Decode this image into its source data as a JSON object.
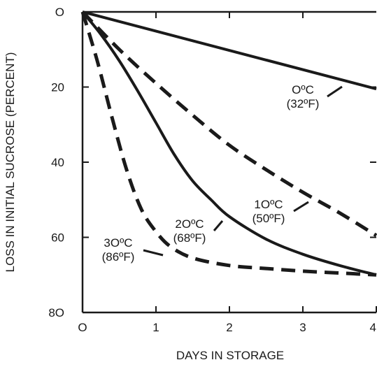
{
  "chart_data": {
    "type": "line",
    "title": "",
    "xlabel": "DAYS IN STORAGE",
    "ylabel": "LOSS IN INITIAL SUCROSE (PERCENT)",
    "xlim": [
      0,
      4
    ],
    "ylim": [
      0,
      80
    ],
    "y_inverted": true,
    "grid": false,
    "x_ticks": [
      {
        "value": 0,
        "label": "O"
      },
      {
        "value": 1,
        "label": "1"
      },
      {
        "value": 2,
        "label": "2"
      },
      {
        "value": 3,
        "label": "3"
      },
      {
        "value": 4,
        "label": "4"
      }
    ],
    "y_ticks": [
      {
        "value": 0,
        "label": "O"
      },
      {
        "value": 20,
        "label": "20"
      },
      {
        "value": 40,
        "label": "40"
      },
      {
        "value": 60,
        "label": "60"
      },
      {
        "value": 80,
        "label": "8O"
      }
    ],
    "series": [
      {
        "name": "0°C (32°F)",
        "label_lines": [
          "OºC",
          "(32ºF)"
        ],
        "style": "solid",
        "points": [
          [
            0,
            0
          ],
          [
            4,
            20.5
          ]
        ]
      },
      {
        "name": "10°C (50°F)",
        "label_lines": [
          "1OºC",
          "(50ºF)"
        ],
        "style": "dashed",
        "points": [
          [
            0,
            0
          ],
          [
            0.5,
            10
          ],
          [
            1,
            19
          ],
          [
            1.5,
            27.5
          ],
          [
            2,
            35.5
          ],
          [
            2.5,
            42
          ],
          [
            3,
            48
          ],
          [
            3.5,
            53.5
          ],
          [
            4,
            59.5
          ]
        ]
      },
      {
        "name": "20°C (68°F)",
        "label_lines": [
          "2OºC",
          "(68ºF)"
        ],
        "style": "solid",
        "points": [
          [
            0,
            0
          ],
          [
            0.25,
            6
          ],
          [
            0.5,
            13
          ],
          [
            0.75,
            21
          ],
          [
            1,
            29.5
          ],
          [
            1.25,
            38
          ],
          [
            1.5,
            45
          ],
          [
            1.75,
            50
          ],
          [
            2,
            54.5
          ],
          [
            2.5,
            60.5
          ],
          [
            3,
            64.5
          ],
          [
            3.5,
            67.5
          ],
          [
            4,
            70
          ]
        ]
      },
      {
        "name": "30°C (86°F)",
        "label_lines": [
          "3OºC",
          "(86ºF)"
        ],
        "style": "dashed",
        "points": [
          [
            0,
            0
          ],
          [
            0.2,
            13
          ],
          [
            0.4,
            28
          ],
          [
            0.6,
            42
          ],
          [
            0.8,
            52.5
          ],
          [
            1,
            58.5
          ],
          [
            1.2,
            62.5
          ],
          [
            1.5,
            65.5
          ],
          [
            2,
            67.5
          ],
          [
            2.5,
            68.3
          ],
          [
            3,
            69
          ],
          [
            3.5,
            69.5
          ],
          [
            4,
            70
          ]
        ]
      }
    ]
  }
}
